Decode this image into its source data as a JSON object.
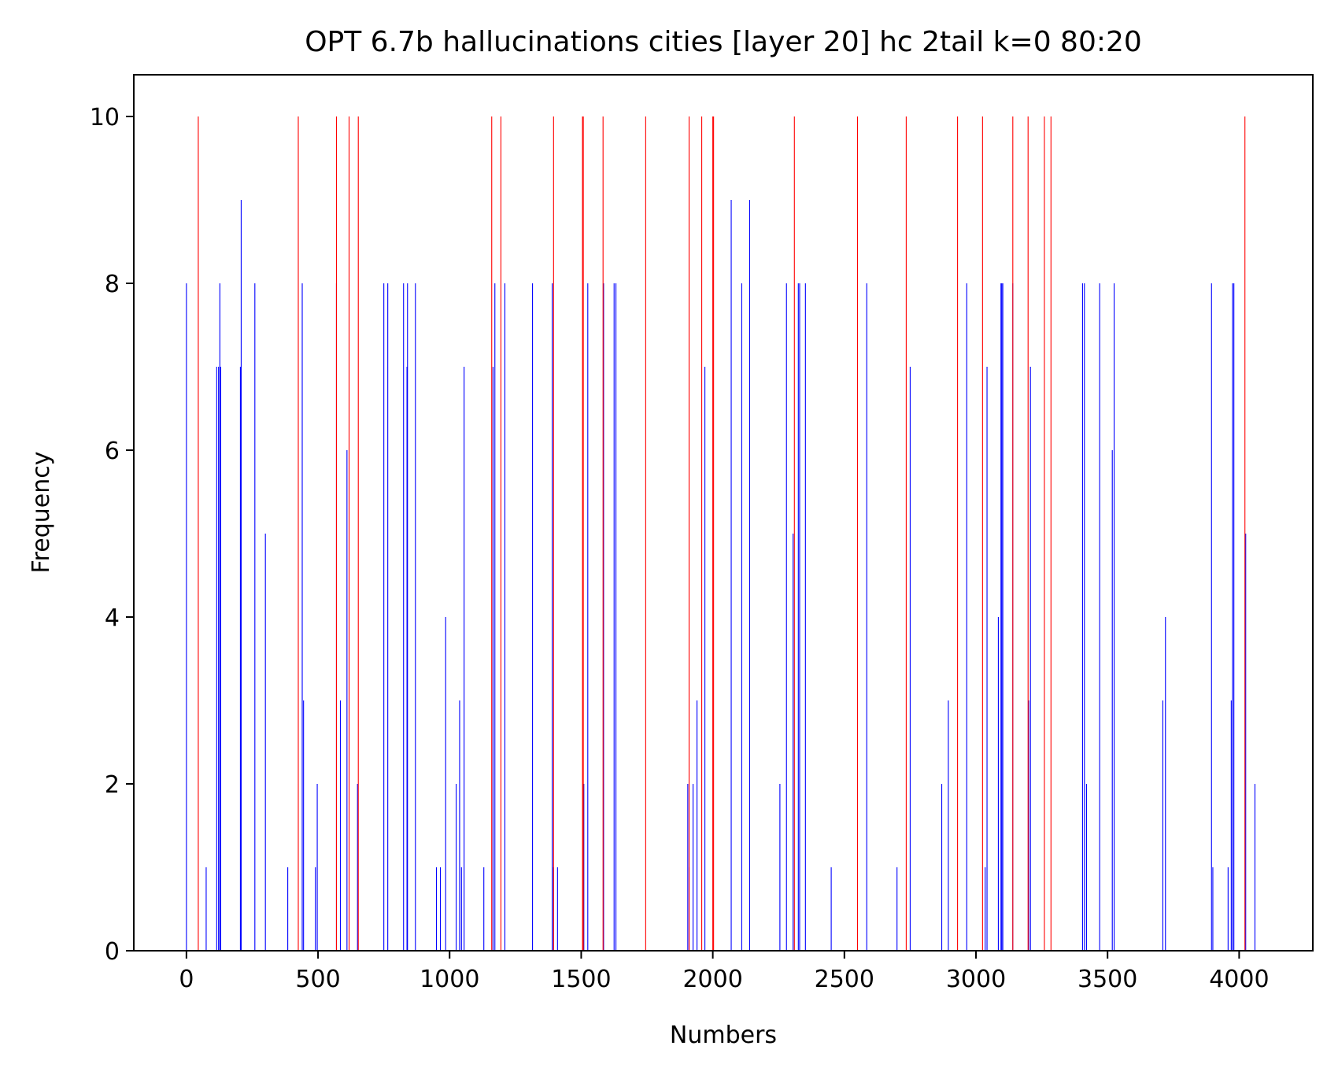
{
  "chart_data": {
    "type": "bar",
    "title": "OPT 6.7b hallucinations cities [layer 20] hc 2tail k=0 80:20",
    "xlabel": "Numbers",
    "ylabel": "Frequency",
    "xlim": [
      -200,
      4280
    ],
    "ylim": [
      0,
      10.5
    ],
    "xticks": [
      0,
      500,
      1000,
      1500,
      2000,
      2500,
      3000,
      3500,
      4000
    ],
    "yticks": [
      0,
      2,
      4,
      6,
      8,
      10
    ],
    "grid": false,
    "series": [
      {
        "color": "#0000ff",
        "points": [
          [
            0,
            8
          ],
          [
            75,
            1
          ],
          [
            115,
            7
          ],
          [
            122,
            7
          ],
          [
            127,
            8
          ],
          [
            130,
            7
          ],
          [
            205,
            7
          ],
          [
            208,
            9
          ],
          [
            260,
            8
          ],
          [
            300,
            5
          ],
          [
            385,
            1
          ],
          [
            440,
            8
          ],
          [
            445,
            3
          ],
          [
            490,
            1
          ],
          [
            497,
            2
          ],
          [
            570,
            8
          ],
          [
            585,
            3
          ],
          [
            610,
            6
          ],
          [
            650,
            2
          ],
          [
            750,
            8
          ],
          [
            765,
            8
          ],
          [
            825,
            8
          ],
          [
            838,
            7
          ],
          [
            840,
            8
          ],
          [
            870,
            8
          ],
          [
            950,
            1
          ],
          [
            965,
            1
          ],
          [
            985,
            4
          ],
          [
            1025,
            2
          ],
          [
            1038,
            3
          ],
          [
            1045,
            1
          ],
          [
            1055,
            7
          ],
          [
            1130,
            1
          ],
          [
            1165,
            7
          ],
          [
            1172,
            8
          ],
          [
            1210,
            8
          ],
          [
            1315,
            8
          ],
          [
            1390,
            8
          ],
          [
            1395,
            1
          ],
          [
            1410,
            1
          ],
          [
            1510,
            2
          ],
          [
            1525,
            8
          ],
          [
            1585,
            8
          ],
          [
            1625,
            8
          ],
          [
            1632,
            8
          ],
          [
            1905,
            2
          ],
          [
            1910,
            1
          ],
          [
            1925,
            2
          ],
          [
            1940,
            3
          ],
          [
            1970,
            7
          ],
          [
            2070,
            9
          ],
          [
            2110,
            8
          ],
          [
            2140,
            9
          ],
          [
            2255,
            2
          ],
          [
            2280,
            8
          ],
          [
            2305,
            5
          ],
          [
            2325,
            8
          ],
          [
            2330,
            8
          ],
          [
            2352,
            8
          ],
          [
            2450,
            1
          ],
          [
            2585,
            8
          ],
          [
            2700,
            1
          ],
          [
            2750,
            7
          ],
          [
            2870,
            2
          ],
          [
            2895,
            3
          ],
          [
            2965,
            8
          ],
          [
            3035,
            1
          ],
          [
            3042,
            7
          ],
          [
            3085,
            4
          ],
          [
            3095,
            8
          ],
          [
            3098,
            8
          ],
          [
            3102,
            8
          ],
          [
            3140,
            8
          ],
          [
            3200,
            3
          ],
          [
            3207,
            7
          ],
          [
            3405,
            8
          ],
          [
            3412,
            8
          ],
          [
            3420,
            2
          ],
          [
            3470,
            8
          ],
          [
            3518,
            6
          ],
          [
            3525,
            8
          ],
          [
            3710,
            3
          ],
          [
            3720,
            4
          ],
          [
            3895,
            8
          ],
          [
            3900,
            1
          ],
          [
            3958,
            1
          ],
          [
            3970,
            3
          ],
          [
            3975,
            8
          ],
          [
            3980,
            8
          ],
          [
            4025,
            5
          ],
          [
            4060,
            2
          ]
        ]
      },
      {
        "color": "#ff0000",
        "points": [
          [
            45,
            10
          ],
          [
            425,
            10
          ],
          [
            570,
            10
          ],
          [
            618,
            10
          ],
          [
            653,
            10
          ],
          [
            1160,
            10
          ],
          [
            1195,
            10
          ],
          [
            1395,
            10
          ],
          [
            1505,
            10
          ],
          [
            1508,
            10
          ],
          [
            1583,
            10
          ],
          [
            1745,
            10
          ],
          [
            1910,
            10
          ],
          [
            1958,
            10
          ],
          [
            2000,
            10
          ],
          [
            2003,
            10
          ],
          [
            2310,
            10
          ],
          [
            2550,
            10
          ],
          [
            2735,
            10
          ],
          [
            2930,
            10
          ],
          [
            3025,
            10
          ],
          [
            3140,
            10
          ],
          [
            3198,
            10
          ],
          [
            3260,
            10
          ],
          [
            3285,
            10
          ],
          [
            4022,
            10
          ]
        ]
      }
    ]
  }
}
